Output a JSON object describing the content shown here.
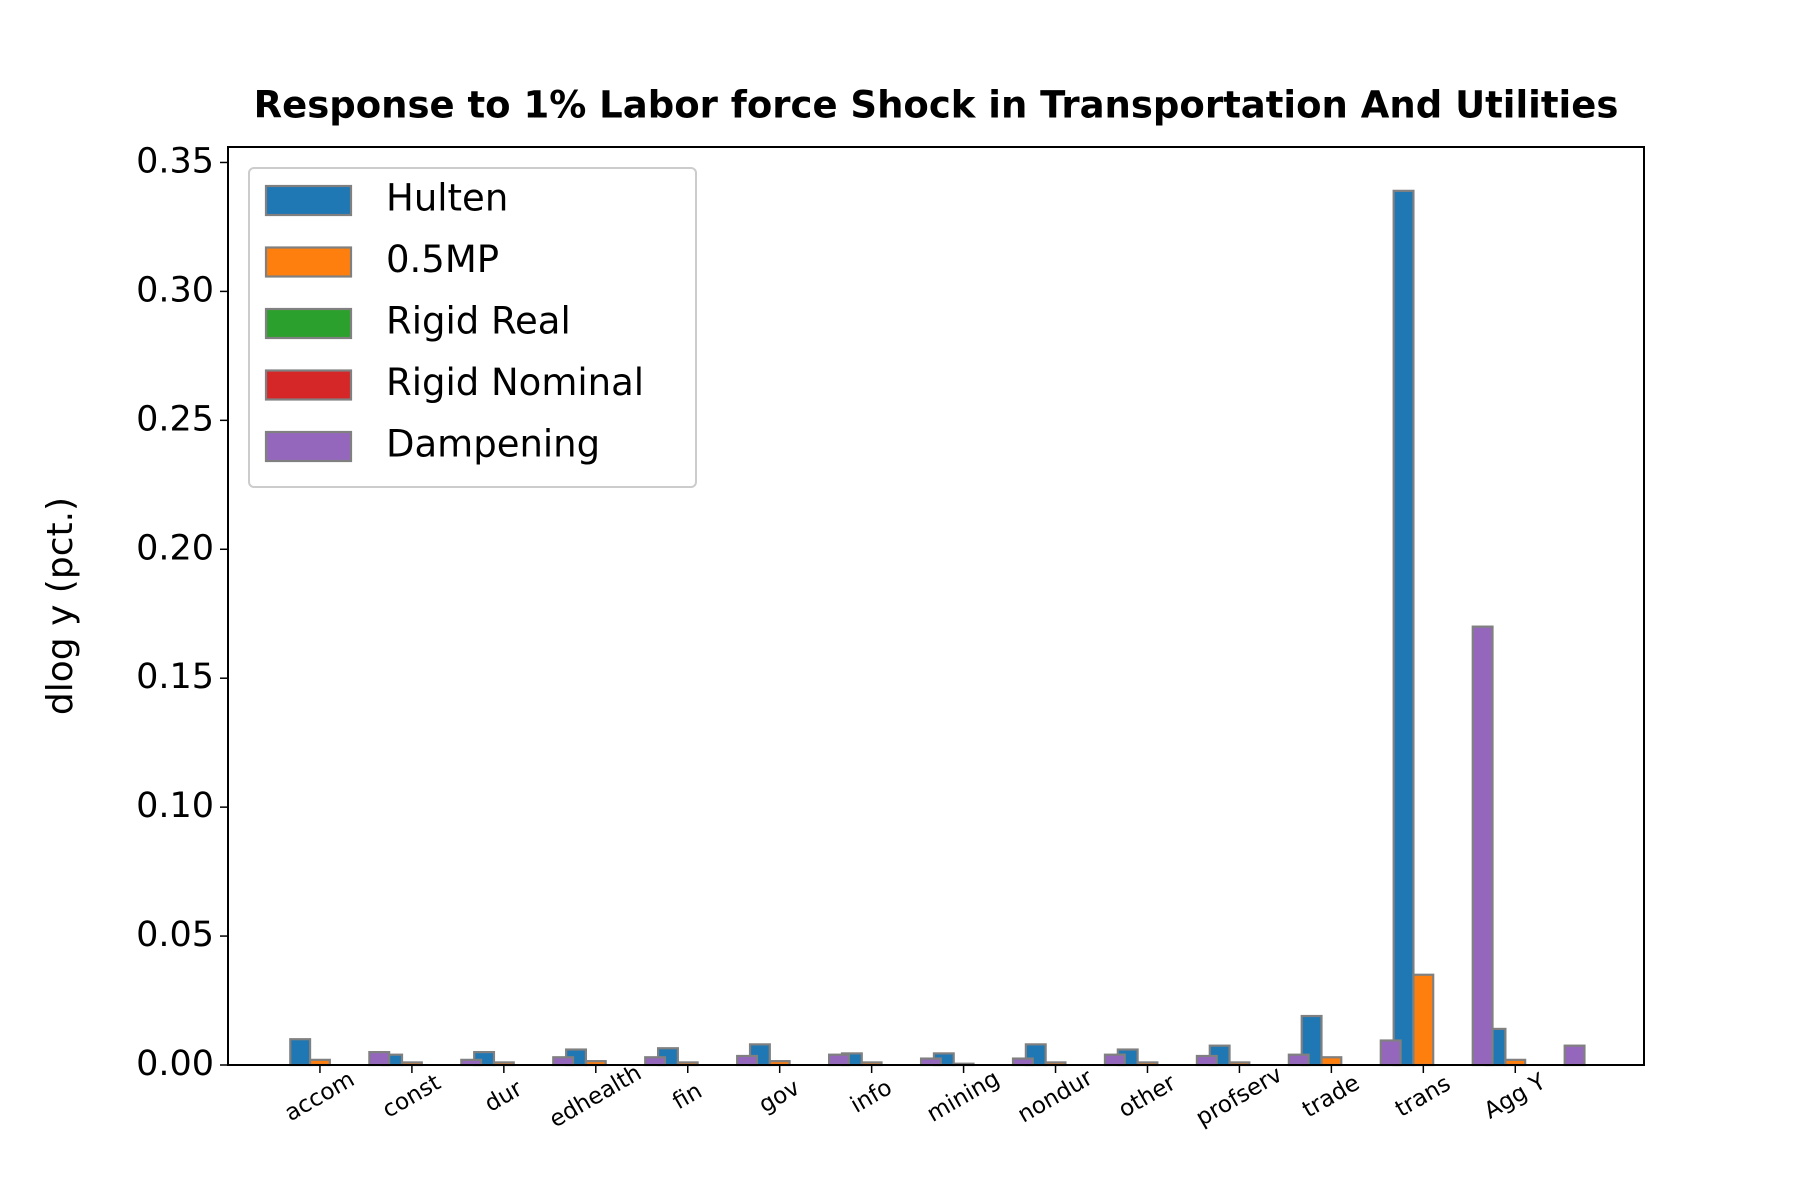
{
  "chart_data": {
    "type": "bar",
    "title": "Response to 1% Labor force Shock in Transportation And Utilities",
    "ylabel": "dlog y (pct.)",
    "categories": [
      "accom",
      "const",
      "dur",
      "edhealth",
      "fin",
      "gov",
      "info",
      "mining",
      "nondur",
      "other",
      "profserv",
      "trade",
      "trans",
      "Agg Y"
    ],
    "series": [
      {
        "name": "Hulten",
        "color": "#1f77b4",
        "values": [
          0.01,
          0.004,
          0.005,
          0.006,
          0.0065,
          0.008,
          0.0045,
          0.0045,
          0.008,
          0.006,
          0.0075,
          0.019,
          0.339,
          0.014
        ]
      },
      {
        "name": "0.5MP",
        "color": "#ff7f0e",
        "values": [
          0.002,
          0.001,
          0.001,
          0.0015,
          0.001,
          0.0015,
          0.001,
          0.0005,
          0.001,
          0.001,
          0.001,
          0.003,
          0.035,
          0.002
        ]
      },
      {
        "name": "Rigid Real",
        "color": "#2ca02c",
        "values": [
          0,
          0,
          0,
          0,
          0,
          0,
          0,
          0,
          0,
          0,
          0,
          0,
          0,
          0
        ]
      },
      {
        "name": "Rigid Nominal",
        "color": "#d62728",
        "values": [
          0,
          0,
          0,
          0,
          0,
          0,
          0,
          0,
          0,
          0,
          0,
          0,
          0,
          0
        ]
      },
      {
        "name": "Dampening",
        "color": "#9467bd",
        "values": [
          0.005,
          0.002,
          0.003,
          0.003,
          0.0035,
          0.004,
          0.0025,
          0.0025,
          0.004,
          0.0035,
          0.004,
          0.0095,
          0.17,
          0.0075
        ]
      }
    ],
    "ylim": [
      0,
      0.356
    ],
    "yticks": [
      {
        "value": 0,
        "label": "0.00"
      },
      {
        "value": 0.05,
        "label": "0.05"
      },
      {
        "value": 0.1,
        "label": "0.10"
      },
      {
        "value": 0.15,
        "label": "0.15"
      },
      {
        "value": 0.2,
        "label": "0.20"
      },
      {
        "value": 0.25,
        "label": "0.25"
      },
      {
        "value": 0.3,
        "label": "0.30"
      },
      0.35
    ],
    "legend": "upper left",
    "edgecolor": "#808080"
  }
}
